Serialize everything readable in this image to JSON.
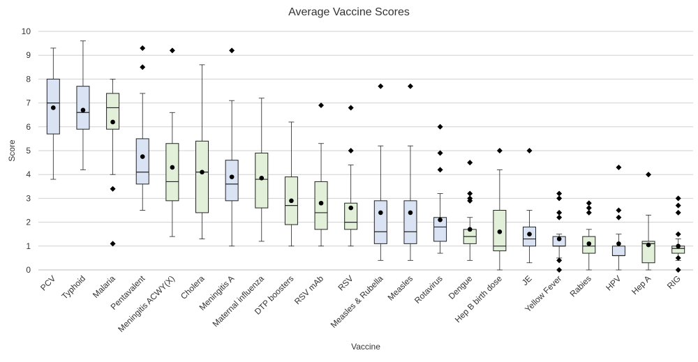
{
  "chart_data": {
    "type": "box",
    "title": "Average Vaccine Scores",
    "xlabel": "Vaccine",
    "ylabel": "Score",
    "ylim": [
      0,
      10
    ],
    "yticks": [
      0,
      1,
      2,
      3,
      4,
      5,
      6,
      7,
      8,
      9,
      10
    ],
    "grid": true,
    "colors": {
      "blue": "#dae3f3",
      "green": "#e2f0d9",
      "line": "#222222",
      "grid": "#d0d0d0"
    },
    "categories": [
      "PCV",
      "Typhoid",
      "Malaria",
      "Pentavalent",
      "Meningitis ACWY(X)",
      "Cholera",
      "Meningitis A",
      "Maternal influenza",
      "DTP boosters",
      "RSV mAb",
      "RSV",
      "Measles & Rubella",
      "Measles",
      "Rotavirus",
      "Dengue",
      "Hep B birth dose",
      "JE",
      "Yellow Fever",
      "Rabies",
      "HPV",
      "Hep A",
      "RIG"
    ],
    "boxes": [
      {
        "name": "PCV",
        "fill": "blue",
        "min": 3.8,
        "q1": 5.7,
        "median": 7.0,
        "q3": 8.0,
        "max": 9.3,
        "mean": 6.8,
        "outliers": []
      },
      {
        "name": "Typhoid",
        "fill": "blue",
        "min": 4.2,
        "q1": 5.9,
        "median": 6.6,
        "q3": 7.7,
        "max": 9.6,
        "mean": 6.7,
        "outliers": []
      },
      {
        "name": "Malaria",
        "fill": "green",
        "min": 4.0,
        "q1": 5.9,
        "median": 6.8,
        "q3": 7.4,
        "max": 8.0,
        "mean": 6.2,
        "outliers": [
          3.4,
          1.1
        ]
      },
      {
        "name": "Pentavalent",
        "fill": "blue",
        "min": 2.5,
        "q1": 3.6,
        "median": 4.1,
        "q3": 5.5,
        "max": 7.4,
        "mean": 4.75,
        "outliers": [
          9.3,
          8.5
        ]
      },
      {
        "name": "Meningitis ACWY(X)",
        "fill": "green",
        "min": 1.4,
        "q1": 2.9,
        "median": 3.7,
        "q3": 5.3,
        "max": 6.6,
        "mean": 4.3,
        "outliers": [
          9.2
        ]
      },
      {
        "name": "Cholera",
        "fill": "green",
        "min": 1.3,
        "q1": 2.4,
        "median": 4.1,
        "q3": 5.4,
        "max": 8.6,
        "mean": 4.1,
        "outliers": []
      },
      {
        "name": "Meningitis A",
        "fill": "blue",
        "min": 1.0,
        "q1": 2.9,
        "median": 3.6,
        "q3": 4.6,
        "max": 7.1,
        "mean": 3.9,
        "outliers": [
          9.2
        ]
      },
      {
        "name": "Maternal influenza",
        "fill": "green",
        "min": 1.2,
        "q1": 2.6,
        "median": 3.8,
        "q3": 4.9,
        "max": 7.2,
        "mean": 3.85,
        "outliers": []
      },
      {
        "name": "DTP boosters",
        "fill": "green",
        "min": 1.0,
        "q1": 1.9,
        "median": 2.7,
        "q3": 3.9,
        "max": 6.2,
        "mean": 2.9,
        "outliers": []
      },
      {
        "name": "RSV mAb",
        "fill": "green",
        "min": 1.0,
        "q1": 1.7,
        "median": 2.4,
        "q3": 3.7,
        "max": 5.3,
        "mean": 2.8,
        "outliers": [
          6.9
        ]
      },
      {
        "name": "RSV",
        "fill": "green",
        "min": 1.0,
        "q1": 1.7,
        "median": 2.0,
        "q3": 2.8,
        "max": 4.4,
        "mean": 2.6,
        "outliers": [
          6.8,
          5.0
        ]
      },
      {
        "name": "Measles & Rubella",
        "fill": "blue",
        "min": 0.4,
        "q1": 1.1,
        "median": 1.6,
        "q3": 2.9,
        "max": 5.2,
        "mean": 2.4,
        "outliers": [
          7.7
        ]
      },
      {
        "name": "Measles",
        "fill": "blue",
        "min": 0.4,
        "q1": 1.1,
        "median": 1.6,
        "q3": 2.9,
        "max": 5.2,
        "mean": 2.4,
        "outliers": [
          7.7
        ]
      },
      {
        "name": "Rotavirus",
        "fill": "blue",
        "min": 0.7,
        "q1": 1.2,
        "median": 1.8,
        "q3": 2.2,
        "max": 3.2,
        "mean": 2.1,
        "outliers": [
          6.0,
          4.9,
          4.2
        ]
      },
      {
        "name": "Dengue",
        "fill": "green",
        "min": 0.4,
        "q1": 1.1,
        "median": 1.4,
        "q3": 1.7,
        "max": 2.2,
        "mean": 1.7,
        "outliers": [
          4.5,
          3.2,
          3.0,
          2.9
        ]
      },
      {
        "name": "Hep B birth dose",
        "fill": "green",
        "min": 0.0,
        "q1": 0.8,
        "median": 1.0,
        "q3": 2.5,
        "max": 4.2,
        "mean": 1.6,
        "outliers": [
          5.0
        ]
      },
      {
        "name": "JE",
        "fill": "blue",
        "min": 0.3,
        "q1": 1.0,
        "median": 1.3,
        "q3": 1.8,
        "max": 2.5,
        "mean": 1.5,
        "outliers": [
          5.0
        ]
      },
      {
        "name": "Yellow Fever",
        "fill": "blue",
        "min": 0.5,
        "q1": 1.0,
        "median": 1.0,
        "q3": 1.4,
        "max": 1.5,
        "mean": 1.3,
        "outliers": [
          3.2,
          3.0,
          2.4,
          2.2,
          0.4,
          0.0
        ]
      },
      {
        "name": "Rabies",
        "fill": "green",
        "min": 0.0,
        "q1": 0.7,
        "median": 1.0,
        "q3": 1.4,
        "max": 1.7,
        "mean": 1.1,
        "outliers": [
          2.8,
          2.6,
          2.4
        ]
      },
      {
        "name": "HPV",
        "fill": "blue",
        "min": 0.0,
        "q1": 0.6,
        "median": 0.6,
        "q3": 1.0,
        "max": 1.5,
        "mean": 1.1,
        "outliers": [
          4.3,
          2.5,
          2.2
        ]
      },
      {
        "name": "Hep A",
        "fill": "green",
        "min": 0.0,
        "q1": 0.3,
        "median": 1.1,
        "q3": 1.2,
        "max": 2.3,
        "mean": 1.05,
        "outliers": [
          4.0
        ]
      },
      {
        "name": "RIG",
        "fill": "green",
        "min": 0.4,
        "q1": 0.7,
        "median": 0.9,
        "q3": 1.0,
        "max": 1.3,
        "mean": 1.0,
        "outliers": [
          3.0,
          2.7,
          2.4,
          1.5,
          0.5,
          0.0
        ]
      }
    ]
  }
}
